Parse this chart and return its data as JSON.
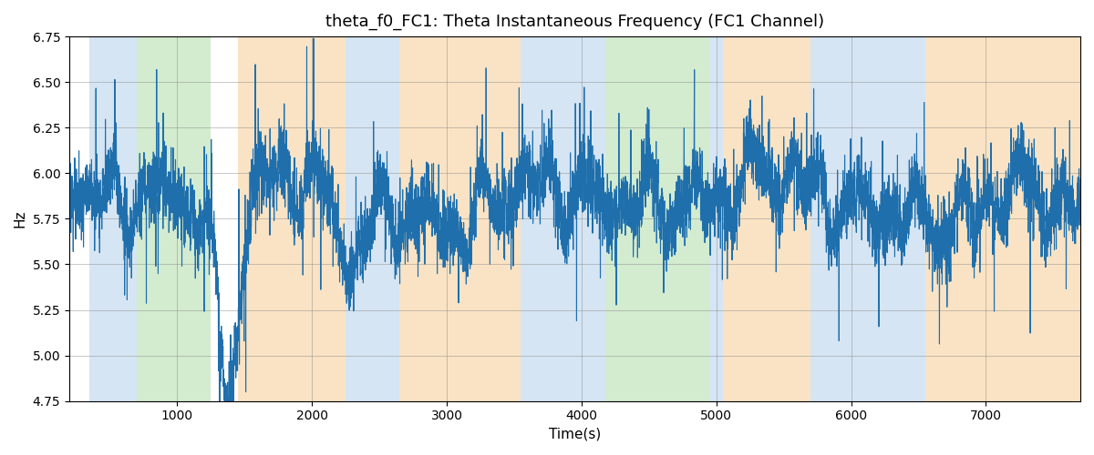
{
  "title": "theta_f0_FC1: Theta Instantaneous Frequency (FC1 Channel)",
  "xlabel": "Time(s)",
  "ylabel": "Hz",
  "ylim": [
    4.75,
    6.75
  ],
  "xlim": [
    200,
    7700
  ],
  "bg_color": "#ffffff",
  "line_color": "#1f6fad",
  "line_width": 0.8,
  "bands": [
    {
      "xmin": 350,
      "xmax": 700,
      "color": "#aecde8",
      "alpha": 0.5
    },
    {
      "xmin": 700,
      "xmax": 1250,
      "color": "#a8d8a0",
      "alpha": 0.5
    },
    {
      "xmin": 1450,
      "xmax": 2250,
      "color": "#f5c98a",
      "alpha": 0.5
    },
    {
      "xmin": 2250,
      "xmax": 2650,
      "color": "#aecde8",
      "alpha": 0.5
    },
    {
      "xmin": 2650,
      "xmax": 3550,
      "color": "#f5c98a",
      "alpha": 0.5
    },
    {
      "xmin": 3550,
      "xmax": 4100,
      "color": "#aecde8",
      "alpha": 0.5
    },
    {
      "xmin": 4100,
      "xmax": 4175,
      "color": "#aecde8",
      "alpha": 0.5
    },
    {
      "xmin": 4175,
      "xmax": 4950,
      "color": "#a8d8a0",
      "alpha": 0.5
    },
    {
      "xmin": 4950,
      "xmax": 5050,
      "color": "#aecde8",
      "alpha": 0.5
    },
    {
      "xmin": 5050,
      "xmax": 5700,
      "color": "#f5c98a",
      "alpha": 0.5
    },
    {
      "xmin": 5700,
      "xmax": 6450,
      "color": "#aecde8",
      "alpha": 0.5
    },
    {
      "xmin": 6450,
      "xmax": 6550,
      "color": "#aecde8",
      "alpha": 0.5
    },
    {
      "xmin": 6550,
      "xmax": 7700,
      "color": "#f5c98a",
      "alpha": 0.5
    }
  ],
  "seed": 99,
  "n_points": 6000,
  "x_start": 200,
  "x_end": 7700,
  "yticks": [
    4.75,
    5.0,
    5.25,
    5.5,
    5.75,
    6.0,
    6.25,
    6.5,
    6.75
  ],
  "title_fontsize": 13,
  "label_fontsize": 11
}
